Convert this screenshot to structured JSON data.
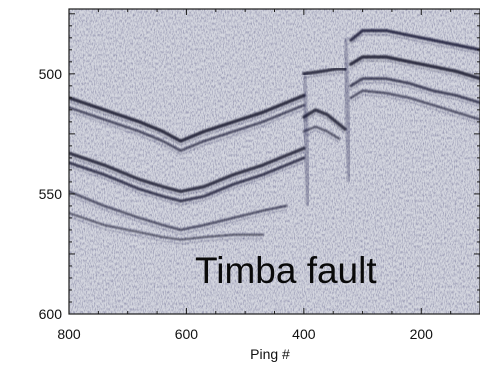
{
  "figure": {
    "type": "seismic-profile",
    "annotation": "Timba fault",
    "xlabel": "Ping #",
    "ylabel": "",
    "x_reversed": true,
    "xlim": [
      800,
      100
    ],
    "ylim": [
      473,
      600
    ],
    "x_ticks": [
      800,
      600,
      400,
      200
    ],
    "y_ticks": [
      500,
      550,
      600
    ],
    "colors": {
      "background": "#d4d6df",
      "reflector": "#14142e",
      "frame": "#1a1a1a"
    },
    "reflectors": [
      {
        "name": "reflector-seafloor-left",
        "strength": 0.95,
        "x": [
          800,
          740,
          680,
          640,
          610,
          570,
          520,
          470,
          430,
          400
        ],
        "y": [
          510,
          515,
          520,
          524,
          528,
          524,
          520,
          516,
          512,
          509
        ]
      },
      {
        "name": "reflector-left-2",
        "strength": 0.6,
        "x": [
          800,
          740,
          680,
          640,
          610,
          570,
          520,
          470,
          430,
          400
        ],
        "y": [
          514,
          519,
          524,
          528,
          532,
          528,
          524,
          520,
          516,
          513
        ]
      },
      {
        "name": "reflector-left-3",
        "strength": 0.9,
        "x": [
          800,
          740,
          680,
          640,
          610,
          570,
          520,
          470,
          430,
          400
        ],
        "y": [
          533,
          538,
          544,
          547,
          549,
          547,
          542,
          538,
          534,
          531
        ]
      },
      {
        "name": "reflector-left-4",
        "strength": 0.75,
        "x": [
          800,
          740,
          680,
          640,
          610,
          570,
          520,
          470,
          430,
          400
        ],
        "y": [
          537,
          542,
          548,
          551,
          553,
          551,
          546,
          542,
          538,
          535
        ]
      },
      {
        "name": "reflector-left-5",
        "strength": 0.55,
        "x": [
          800,
          740,
          680,
          640,
          610,
          570,
          520,
          470,
          430
        ],
        "y": [
          549,
          555,
          560,
          563,
          565,
          563,
          560,
          557,
          555
        ]
      },
      {
        "name": "reflector-left-deep",
        "strength": 0.45,
        "x": [
          800,
          740,
          680,
          640,
          610,
          570,
          520,
          470
        ],
        "y": [
          558,
          563,
          566,
          568,
          569,
          568,
          567,
          567
        ]
      },
      {
        "name": "reflector-block-top",
        "strength": 0.9,
        "x": [
          400,
          370,
          345,
          330
        ],
        "y": [
          500,
          499,
          498,
          498
        ]
      },
      {
        "name": "reflector-block-2",
        "strength": 0.9,
        "x": [
          400,
          380,
          360,
          345,
          330
        ],
        "y": [
          518,
          515,
          517,
          520,
          523
        ]
      },
      {
        "name": "reflector-block-3",
        "strength": 0.5,
        "x": [
          400,
          380,
          360,
          340
        ],
        "y": [
          524,
          522,
          524,
          527
        ]
      },
      {
        "name": "reflector-right-seafloor",
        "strength": 0.85,
        "x": [
          320,
          300,
          260,
          220,
          180,
          140,
          100
        ],
        "y": [
          486,
          482,
          482,
          484,
          486,
          488,
          490
        ]
      },
      {
        "name": "reflector-right-2",
        "strength": 0.95,
        "x": [
          320,
          300,
          260,
          220,
          180,
          140,
          100
        ],
        "y": [
          496,
          493,
          493,
          495,
          497,
          499,
          502
        ]
      },
      {
        "name": "reflector-right-3",
        "strength": 0.7,
        "x": [
          320,
          300,
          260,
          220,
          180,
          140,
          100
        ],
        "y": [
          505,
          502,
          502,
          504,
          507,
          509,
          512
        ]
      },
      {
        "name": "reflector-right-4",
        "strength": 0.55,
        "x": [
          320,
          300,
          260,
          220,
          180,
          140,
          100
        ],
        "y": [
          510,
          507,
          508,
          510,
          513,
          516,
          519
        ]
      }
    ]
  }
}
